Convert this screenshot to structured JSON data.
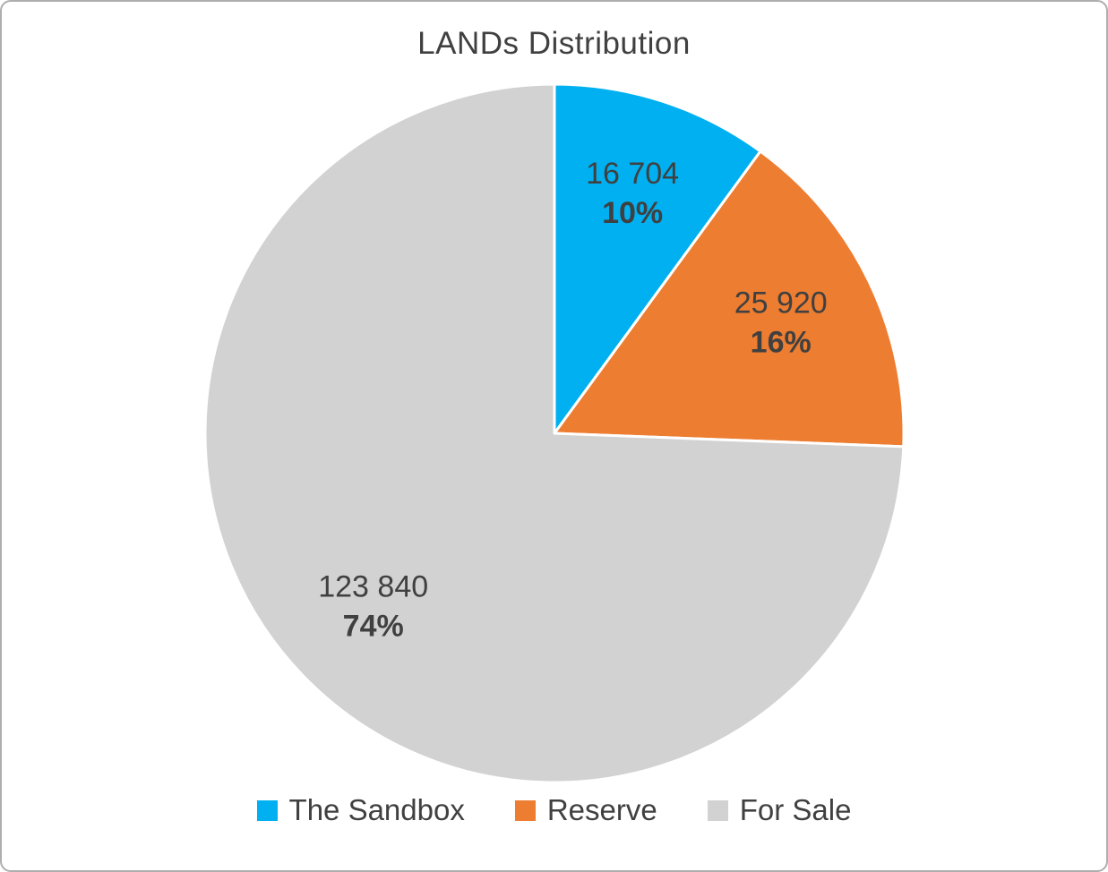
{
  "chart": {
    "title": "LANDs Distribution"
  },
  "colors": {
    "sandbox_blue": "#00B0F0",
    "reserve_orange": "#ED7D31",
    "forsale_gray": "#D2D2D2",
    "label_text": "#404040",
    "slice_separator": "#FFFFFF",
    "frame_border": "#AEAEAE"
  },
  "chart_data": {
    "type": "pie",
    "title": "LANDs Distribution",
    "categories": [
      "The Sandbox",
      "Reserve",
      "For Sale"
    ],
    "values": [
      16704,
      25920,
      123840
    ],
    "value_labels": [
      "16 704",
      "25 920",
      "123 840"
    ],
    "percentages": [
      10,
      16,
      74
    ],
    "percent_labels": [
      "10%",
      "16%",
      "74%"
    ],
    "colors": [
      "#00B0F0",
      "#ED7D31",
      "#D2D2D2"
    ],
    "start_angle_deg": 0,
    "direction": "clockwise",
    "legend_position": "bottom",
    "legend": [
      "The Sandbox",
      "Reserve",
      "For Sale"
    ]
  }
}
